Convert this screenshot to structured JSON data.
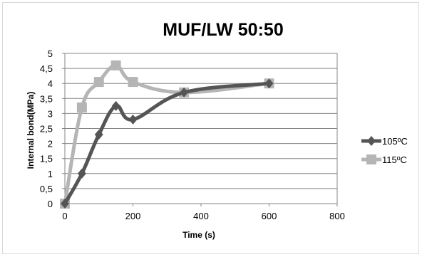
{
  "chart_data": {
    "type": "line",
    "title": "MUF/LW 50:50",
    "xlabel": "Time (s)",
    "ylabel": "Internal bond(MPa)",
    "xlim": [
      0,
      800
    ],
    "ylim": [
      0,
      5
    ],
    "x_ticks": [
      "0",
      "200",
      "400",
      "600",
      "800"
    ],
    "y_ticks": [
      "0",
      "0,5",
      "1",
      "1,5",
      "2",
      "2,5",
      "3",
      "3,5",
      "4",
      "4,5",
      "5"
    ],
    "x_tick_values": [
      0,
      200,
      400,
      600,
      800
    ],
    "y_tick_values": [
      0,
      0.5,
      1,
      1.5,
      2,
      2.5,
      3,
      3.5,
      4,
      4.5,
      5
    ],
    "grid": "horizontal",
    "legend_position": "right",
    "series": [
      {
        "name": "105ºC",
        "marker": "diamond",
        "color": "#555555",
        "x": [
          0,
          50,
          100,
          150,
          200,
          350,
          600
        ],
        "y": [
          0,
          1.0,
          2.3,
          3.25,
          2.8,
          3.7,
          4.0
        ]
      },
      {
        "name": "115ºC",
        "marker": "square",
        "color": "#b5b5b5",
        "x": [
          0,
          50,
          100,
          150,
          200,
          350,
          600
        ],
        "y": [
          0,
          3.2,
          4.05,
          4.6,
          4.05,
          3.7,
          4.0
        ]
      }
    ]
  }
}
